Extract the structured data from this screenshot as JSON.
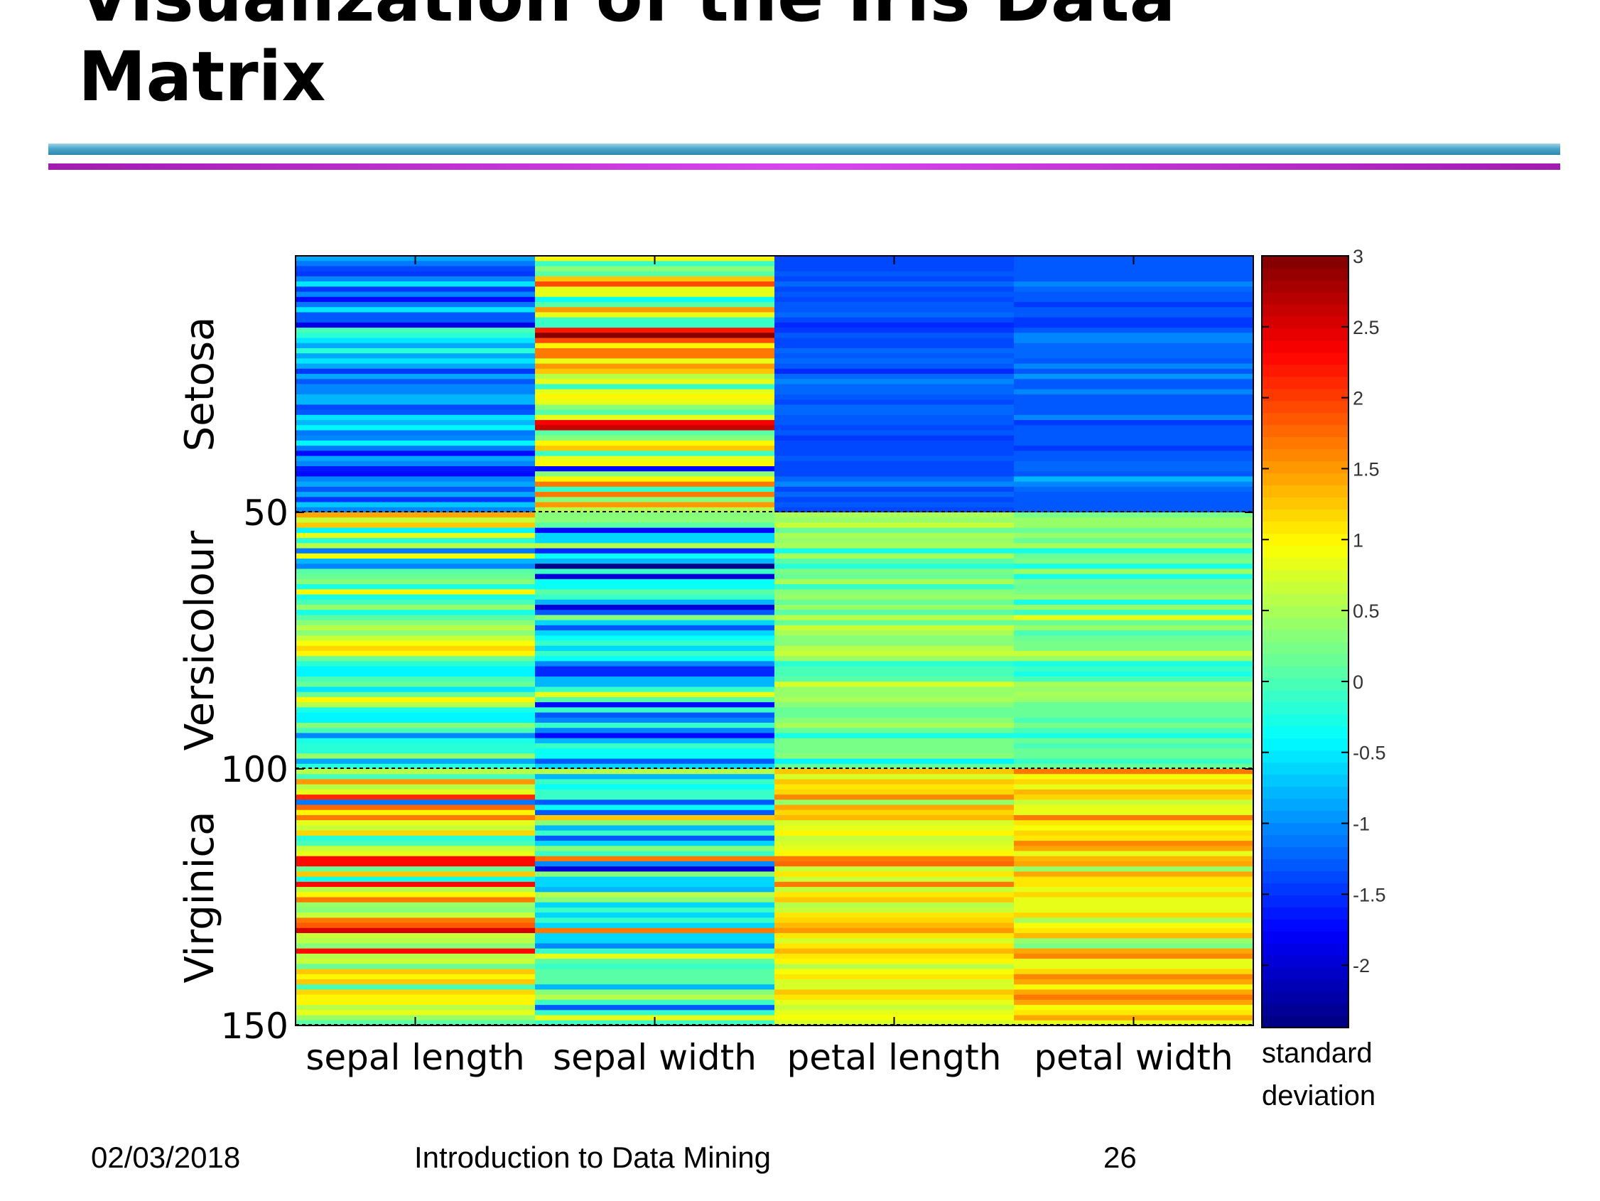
{
  "slide": {
    "title_line1": "Visualization of the Iris Data",
    "title_line2": "Matrix",
    "footer_date": "02/03/2018",
    "footer_course": "Introduction to Data Mining",
    "footer_page": "26"
  },
  "chart_data": {
    "type": "heatmap",
    "columns": [
      "sepal length",
      "sepal width",
      "petal length",
      "petal width"
    ],
    "row_count": 150,
    "row_ticks": [
      50,
      100,
      150
    ],
    "row_groups": [
      {
        "name": "Setosa",
        "from": 1,
        "to": 50
      },
      {
        "name": "Versicolour",
        "from": 51,
        "to": 100
      },
      {
        "name": "Virginica",
        "from": 101,
        "to": 150
      }
    ],
    "group_separators": [
      50,
      100,
      150
    ],
    "colorbar": {
      "label_line1": "standard",
      "label_line2": "deviation",
      "min": -2.44,
      "max": 3.0,
      "ticks": [
        "3",
        "2.5",
        "2",
        "1.5",
        "1",
        "0.5",
        "0",
        "-0.5",
        "-1",
        "-1.5",
        "-2"
      ],
      "colormap": "jet"
    },
    "group_typical_values": {
      "Setosa": [
        -1.0,
        0.9,
        -1.3,
        -1.3
      ],
      "Versicolour": [
        0.1,
        -0.7,
        0.3,
        0.2
      ],
      "Virginica": [
        0.9,
        -0.2,
        1.0,
        1.1
      ]
    },
    "values": [
      [
        -0.9,
        1.0,
        -1.34,
        -1.31
      ],
      [
        -1.14,
        -0.13,
        -1.34,
        -1.31
      ],
      [
        -1.38,
        0.33,
        -1.4,
        -1.31
      ],
      [
        -1.5,
        0.1,
        -1.28,
        -1.31
      ],
      [
        -1.02,
        1.25,
        -1.34,
        -1.31
      ],
      [
        -0.54,
        1.93,
        -1.17,
        -1.05
      ],
      [
        -1.5,
        0.79,
        -1.34,
        -1.18
      ],
      [
        -1.02,
        0.79,
        -1.28,
        -1.31
      ],
      [
        -1.74,
        -0.36,
        -1.34,
        -1.31
      ],
      [
        -1.14,
        0.1,
        -1.28,
        -1.44
      ],
      [
        -0.54,
        1.47,
        -1.28,
        -1.31
      ],
      [
        -1.26,
        0.79,
        -1.23,
        -1.31
      ],
      [
        -1.26,
        -0.13,
        -1.34,
        -1.44
      ],
      [
        -1.86,
        -0.13,
        -1.51,
        -1.44
      ],
      [
        -0.05,
        2.16,
        -1.45,
        -1.31
      ],
      [
        -0.17,
        3.0,
        -1.28,
        -1.05
      ],
      [
        -0.54,
        1.93,
        -1.4,
        -1.05
      ],
      [
        -0.9,
        1.0,
        -1.34,
        -1.18
      ],
      [
        -0.17,
        1.7,
        -1.17,
        -1.18
      ],
      [
        -0.9,
        1.7,
        -1.28,
        -1.18
      ],
      [
        -0.54,
        0.79,
        -1.17,
        -1.31
      ],
      [
        -0.9,
        1.47,
        -1.28,
        -1.05
      ],
      [
        -1.5,
        1.25,
        -1.57,
        -1.31
      ],
      [
        -0.9,
        0.56,
        -1.17,
        -0.92
      ],
      [
        -1.26,
        0.79,
        -1.06,
        -1.31
      ],
      [
        -1.02,
        -0.13,
        -1.23,
        -1.31
      ],
      [
        -1.02,
        0.79,
        -1.23,
        -1.05
      ],
      [
        -0.78,
        1.0,
        -1.28,
        -1.31
      ],
      [
        -0.78,
        0.79,
        -1.34,
        -1.31
      ],
      [
        -1.38,
        0.33,
        -1.23,
        -1.31
      ],
      [
        -1.26,
        0.1,
        -1.23,
        -1.31
      ],
      [
        -0.54,
        0.79,
        -1.28,
        -1.05
      ],
      [
        -0.78,
        2.4,
        -1.28,
        -1.44
      ],
      [
        -0.42,
        2.63,
        -1.34,
        -1.31
      ],
      [
        -1.14,
        0.1,
        -1.28,
        -1.31
      ],
      [
        -1.02,
        0.33,
        -1.45,
        -1.31
      ],
      [
        -0.42,
        1.0,
        -1.4,
        -1.31
      ],
      [
        -1.14,
        1.25,
        -1.34,
        -1.44
      ],
      [
        -1.74,
        -0.13,
        -1.4,
        -1.31
      ],
      [
        -0.9,
        0.79,
        -1.28,
        -1.31
      ],
      [
        -1.02,
        1.0,
        -1.4,
        -1.18
      ],
      [
        -1.62,
        -1.74,
        -1.4,
        -1.18
      ],
      [
        -1.74,
        0.33,
        -1.4,
        -1.31
      ],
      [
        -1.02,
        1.0,
        -1.23,
        -0.79
      ],
      [
        -0.9,
        1.7,
        -1.06,
        -1.05
      ],
      [
        -1.26,
        -0.13,
        -1.34,
        -1.18
      ],
      [
        -0.9,
        1.7,
        -1.23,
        -1.31
      ],
      [
        -1.5,
        0.33,
        -1.34,
        -1.31
      ],
      [
        -0.66,
        1.47,
        -1.28,
        -1.31
      ],
      [
        -1.02,
        0.56,
        -1.34,
        -1.31
      ],
      [
        1.4,
        0.33,
        0.53,
        0.26
      ],
      [
        0.67,
        0.33,
        0.42,
        0.4
      ],
      [
        1.28,
        0.1,
        0.65,
        0.4
      ],
      [
        -0.42,
        -1.74,
        0.14,
        0.13
      ],
      [
        0.79,
        -0.59,
        0.48,
        0.4
      ],
      [
        -0.17,
        -0.59,
        0.42,
        0.13
      ],
      [
        0.55,
        0.56,
        0.53,
        0.53
      ],
      [
        -1.14,
        -1.51,
        -0.26,
        -0.26
      ],
      [
        0.92,
        -0.36,
        0.48,
        0.13
      ],
      [
        -0.78,
        -0.82,
        0.08,
        0.26
      ],
      [
        -1.02,
        -2.43,
        -0.15,
        -0.26
      ],
      [
        0.07,
        -0.13,
        0.25,
        0.4
      ],
      [
        0.19,
        -1.97,
        0.14,
        -0.26
      ],
      [
        0.31,
        -0.36,
        0.53,
        0.26
      ],
      [
        -0.29,
        -0.36,
        -0.09,
        0.13
      ],
      [
        1.04,
        0.1,
        0.36,
        0.26
      ],
      [
        -0.29,
        -0.13,
        0.42,
        0.4
      ],
      [
        -0.05,
        -0.82,
        0.19,
        -0.26
      ],
      [
        0.43,
        -1.97,
        0.42,
        0.4
      ],
      [
        -0.29,
        -1.28,
        0.08,
        -0.13
      ],
      [
        0.07,
        0.33,
        0.59,
        0.79
      ],
      [
        0.31,
        -0.59,
        0.14,
        0.13
      ],
      [
        0.55,
        -1.28,
        0.65,
        0.4
      ],
      [
        0.31,
        -0.59,
        0.53,
        0.0
      ],
      [
        0.67,
        -0.36,
        0.31,
        0.13
      ],
      [
        0.92,
        -0.13,
        0.36,
        0.26
      ],
      [
        1.16,
        -0.59,
        0.59,
        0.26
      ],
      [
        1.04,
        -0.13,
        0.7,
        0.66
      ],
      [
        0.19,
        -0.36,
        0.42,
        0.4
      ],
      [
        -0.17,
        -1.05,
        -0.15,
        -0.26
      ],
      [
        -0.42,
        -1.51,
        0.02,
        -0.13
      ],
      [
        -0.42,
        -1.51,
        -0.03,
        -0.26
      ],
      [
        -0.05,
        -0.82,
        0.08,
        0.0
      ],
      [
        0.19,
        -0.82,
        0.76,
        0.53
      ],
      [
        -0.54,
        -0.13,
        0.42,
        0.4
      ],
      [
        0.19,
        0.79,
        0.42,
        0.53
      ],
      [
        1.04,
        0.1,
        0.53,
        0.4
      ],
      [
        0.55,
        -1.74,
        0.36,
        0.13
      ],
      [
        -0.29,
        -0.13,
        0.19,
        0.13
      ],
      [
        -0.42,
        -1.28,
        0.14,
        0.13
      ],
      [
        -0.42,
        -1.05,
        0.36,
        0.0
      ],
      [
        0.31,
        -0.13,
        0.48,
        0.26
      ],
      [
        -0.05,
        -1.05,
        0.14,
        0.0
      ],
      [
        -1.02,
        -1.74,
        -0.26,
        -0.26
      ],
      [
        -0.29,
        -0.82,
        0.25,
        0.13
      ],
      [
        -0.17,
        -0.13,
        0.25,
        0.0
      ],
      [
        -0.17,
        -0.36,
        0.25,
        0.13
      ],
      [
        0.43,
        -0.36,
        0.31,
        0.13
      ],
      [
        -0.9,
        -1.28,
        -0.43,
        -0.13
      ],
      [
        -0.17,
        -0.59,
        0.19,
        0.13
      ],
      [
        0.55,
        0.56,
        1.27,
        1.71
      ],
      [
        -0.05,
        -0.82,
        0.76,
        0.92
      ],
      [
        1.52,
        -0.13,
        1.22,
        1.18
      ],
      [
        0.55,
        -0.36,
        1.05,
        0.79
      ],
      [
        0.79,
        -0.13,
        1.16,
        1.31
      ],
      [
        2.13,
        -0.13,
        1.61,
        1.18
      ],
      [
        -1.14,
        -1.28,
        0.42,
        0.66
      ],
      [
        1.76,
        -0.36,
        1.44,
        0.79
      ],
      [
        1.04,
        -1.28,
        1.16,
        0.79
      ],
      [
        1.64,
        1.25,
        1.33,
        1.71
      ],
      [
        0.79,
        0.33,
        0.76,
        1.05
      ],
      [
        0.67,
        -0.82,
        0.87,
        0.92
      ],
      [
        1.16,
        -0.13,
        0.99,
        1.18
      ],
      [
        -0.17,
        -1.28,
        0.7,
        1.05
      ],
      [
        -0.05,
        -0.59,
        0.76,
        1.58
      ],
      [
        0.67,
        0.33,
        0.87,
        1.44
      ],
      [
        0.79,
        -0.13,
        0.99,
        0.79
      ],
      [
        2.25,
        1.7,
        1.67,
        1.31
      ],
      [
        2.25,
        -1.05,
        1.78,
        1.44
      ],
      [
        0.19,
        -1.97,
        0.7,
        0.4
      ],
      [
        1.28,
        0.33,
        1.1,
        1.44
      ],
      [
        -0.29,
        -0.59,
        0.65,
        1.05
      ],
      [
        2.25,
        -0.59,
        1.67,
        1.05
      ],
      [
        0.55,
        -0.82,
        0.65,
        0.79
      ],
      [
        1.04,
        0.56,
        1.1,
        1.18
      ],
      [
        1.64,
        0.33,
        1.27,
        0.79
      ],
      [
        0.43,
        -0.59,
        0.59,
        0.79
      ],
      [
        0.31,
        -0.13,
        0.65,
        0.79
      ],
      [
        0.67,
        -0.59,
        1.05,
        1.18
      ],
      [
        1.64,
        -0.13,
        1.16,
        0.53
      ],
      [
        1.88,
        -0.59,
        1.33,
        0.92
      ],
      [
        2.49,
        1.7,
        1.5,
        1.05
      ],
      [
        0.67,
        -0.59,
        1.05,
        1.31
      ],
      [
        0.55,
        -0.59,
        0.76,
        0.4
      ],
      [
        0.31,
        -1.05,
        1.05,
        0.26
      ],
      [
        2.25,
        -0.13,
        1.33,
        1.44
      ],
      [
        0.55,
        0.79,
        1.05,
        1.58
      ],
      [
        0.67,
        0.1,
        0.99,
        0.79
      ],
      [
        0.19,
        -0.13,
        0.59,
        0.79
      ],
      [
        1.28,
        0.1,
        0.93,
        1.18
      ],
      [
        1.04,
        0.1,
        1.05,
        1.58
      ],
      [
        1.28,
        0.1,
        0.76,
        1.44
      ],
      [
        -0.05,
        -0.82,
        0.76,
        0.92
      ],
      [
        1.16,
        0.33,
        1.22,
        1.44
      ],
      [
        1.04,
        0.56,
        1.1,
        1.71
      ],
      [
        1.04,
        -0.13,
        0.82,
        1.44
      ],
      [
        0.55,
        -1.28,
        0.7,
        0.92
      ],
      [
        0.79,
        -0.13,
        0.82,
        1.05
      ],
      [
        0.43,
        0.79,
        0.93,
        1.44
      ],
      [
        0.07,
        -0.13,
        0.76,
        0.79
      ]
    ]
  }
}
